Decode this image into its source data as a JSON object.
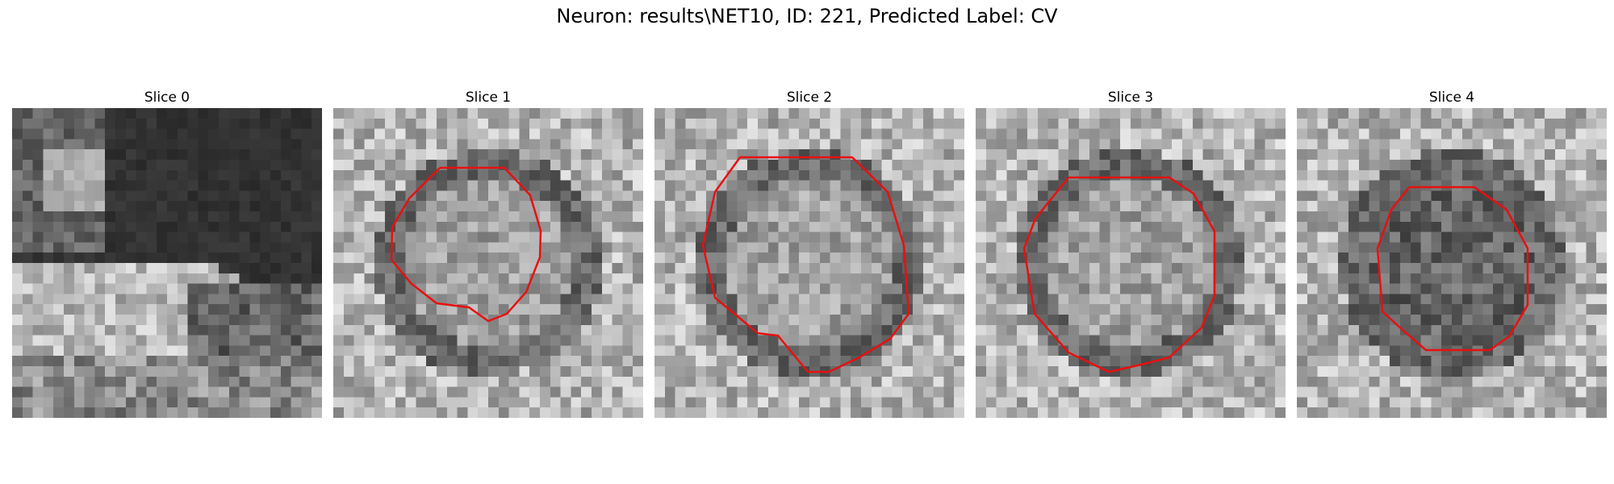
{
  "figure": {
    "title": "Neuron: results\\NET10, ID: 221, Predicted Label: CV",
    "contour_color": "#e81010",
    "colormap": "gray"
  },
  "slices": [
    {
      "title": "Slice 0",
      "has_contour": false,
      "seed": 11,
      "pattern": "dark-bands"
    },
    {
      "title": "Slice 1",
      "has_contour": true,
      "seed": 23,
      "pattern": "ring"
    },
    {
      "title": "Slice 2",
      "has_contour": true,
      "seed": 37,
      "pattern": "ring"
    },
    {
      "title": "Slice 3",
      "has_contour": true,
      "seed": 51,
      "pattern": "ring"
    },
    {
      "title": "Slice 4",
      "has_contour": true,
      "seed": 67,
      "pattern": "ring-dark"
    }
  ]
}
